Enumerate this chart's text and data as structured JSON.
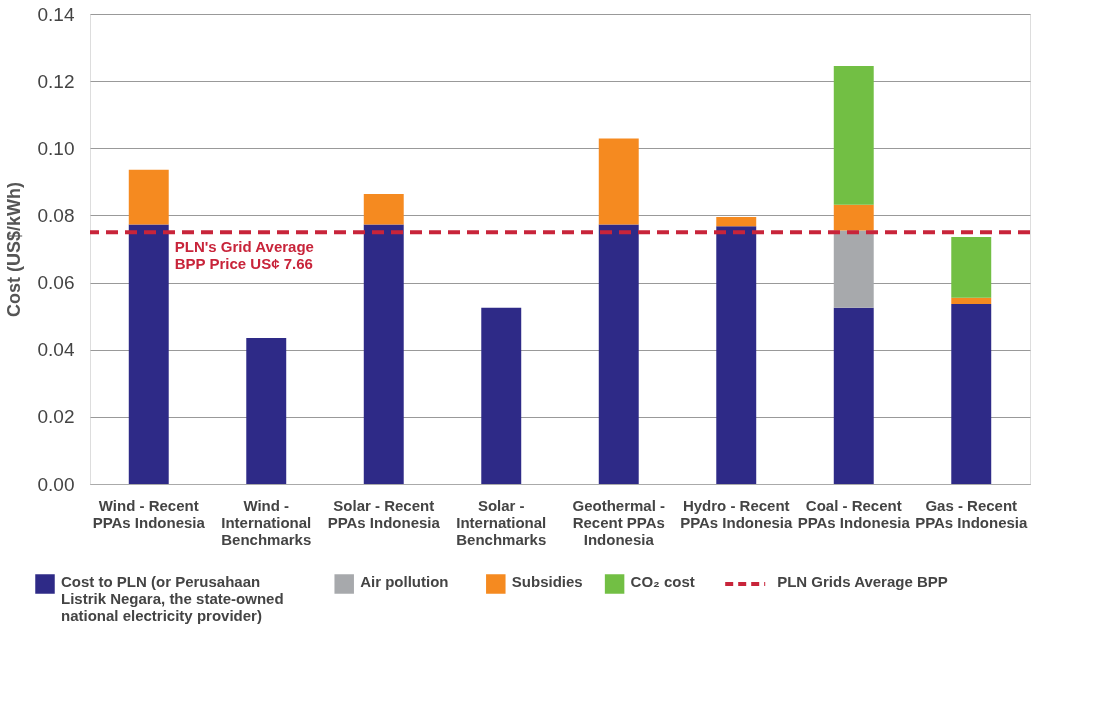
{
  "chart_data": {
    "type": "bar",
    "stacked": true,
    "ylabel": "Cost (US$/kWh)",
    "categories": [
      "Wind - Recent PPAs Indonesia",
      "Wind - International Benchmarks",
      "Solar - Recent PPAs Indonesia",
      "Solar - International Benchmarks",
      "Geothermal - Recent PPAs Indonesia",
      "Hydro - Recent PPAs Indonesia",
      "Coal - Recent PPAs Indonesia",
      "Gas - Recent PPAs Indonesia"
    ],
    "series": [
      {
        "name": "Cost to PLN (or Perusahaan Listrik Negara, the state-owned national electricity provider)",
        "color": "#2e2a87",
        "values": [
          0.0773,
          0.0435,
          0.0773,
          0.0525,
          0.0773,
          0.0768,
          0.0525,
          0.0536
        ]
      },
      {
        "name": "Air pollution",
        "color": "#a7a9ac",
        "values": [
          null,
          null,
          null,
          null,
          null,
          null,
          0.023,
          null
        ]
      },
      {
        "name": "Subsidies",
        "color": "#f58a20",
        "values": [
          0.0163,
          null,
          0.0091,
          null,
          0.0256,
          0.0027,
          0.0077,
          0.0019
        ]
      },
      {
        "name": "CO₂ cost",
        "color": "#72bf44",
        "values": [
          null,
          null,
          null,
          null,
          null,
          null,
          0.0413,
          0.0181
        ]
      }
    ],
    "ylim": [
      0,
      0.14
    ],
    "yticks": [
      {
        "value": 0,
        "label": "0.00"
      },
      {
        "value": 0.02,
        "label": "0.02"
      },
      {
        "value": 0.04,
        "label": "0.04"
      },
      {
        "value": 0.06,
        "label": "0.06"
      },
      {
        "value": 0.08,
        "label": "0.08"
      },
      {
        "value": 0.1,
        "label": "0.10"
      },
      {
        "value": 0.12,
        "label": "0.12"
      },
      {
        "value": 0.14,
        "label": "0.14"
      }
    ],
    "ref_lines": [
      {
        "axis": "y",
        "value": 0.075,
        "label": "PLN Grids Average BPP",
        "color": "#c8243a",
        "line_style": "dashed"
      }
    ],
    "annotations": [
      {
        "text": "PLN's Grid Average BPP Price US¢ 7.66",
        "x": "Wind - Recent PPAs Indonesia",
        "y": 0.075
      }
    ],
    "grid": "y",
    "legend": "bottom"
  }
}
